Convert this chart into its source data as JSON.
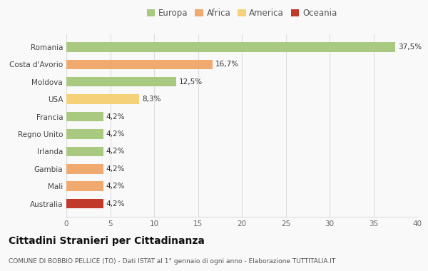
{
  "categories": [
    "Romania",
    "Costa d'Avorio",
    "Moldova",
    "USA",
    "Francia",
    "Regno Unito",
    "Irlanda",
    "Gambia",
    "Mali",
    "Australia"
  ],
  "values": [
    37.5,
    16.7,
    12.5,
    8.3,
    4.2,
    4.2,
    4.2,
    4.2,
    4.2,
    4.2
  ],
  "labels": [
    "37,5%",
    "16,7%",
    "12,5%",
    "8,3%",
    "4,2%",
    "4,2%",
    "4,2%",
    "4,2%",
    "4,2%",
    "4,2%"
  ],
  "colors": [
    "#a8c97f",
    "#f0a96e",
    "#a8c97f",
    "#f5d27a",
    "#a8c97f",
    "#a8c97f",
    "#a8c97f",
    "#f0a96e",
    "#f0a96e",
    "#c0392b"
  ],
  "legend": {
    "Europa": "#a8c97f",
    "Africa": "#f0a96e",
    "America": "#f5d27a",
    "Oceania": "#c0392b"
  },
  "xlim": [
    0,
    40
  ],
  "xticks": [
    0,
    5,
    10,
    15,
    20,
    25,
    30,
    35,
    40
  ],
  "title": "Cittadini Stranieri per Cittadinanza",
  "subtitle": "COMUNE DI BOBBIO PELLICE (TO) - Dati ISTAT al 1° gennaio di ogni anno - Elaborazione TUTTITALIA.IT",
  "background_color": "#f9f9f9",
  "grid_color": "#dddddd",
  "bar_height": 0.55
}
